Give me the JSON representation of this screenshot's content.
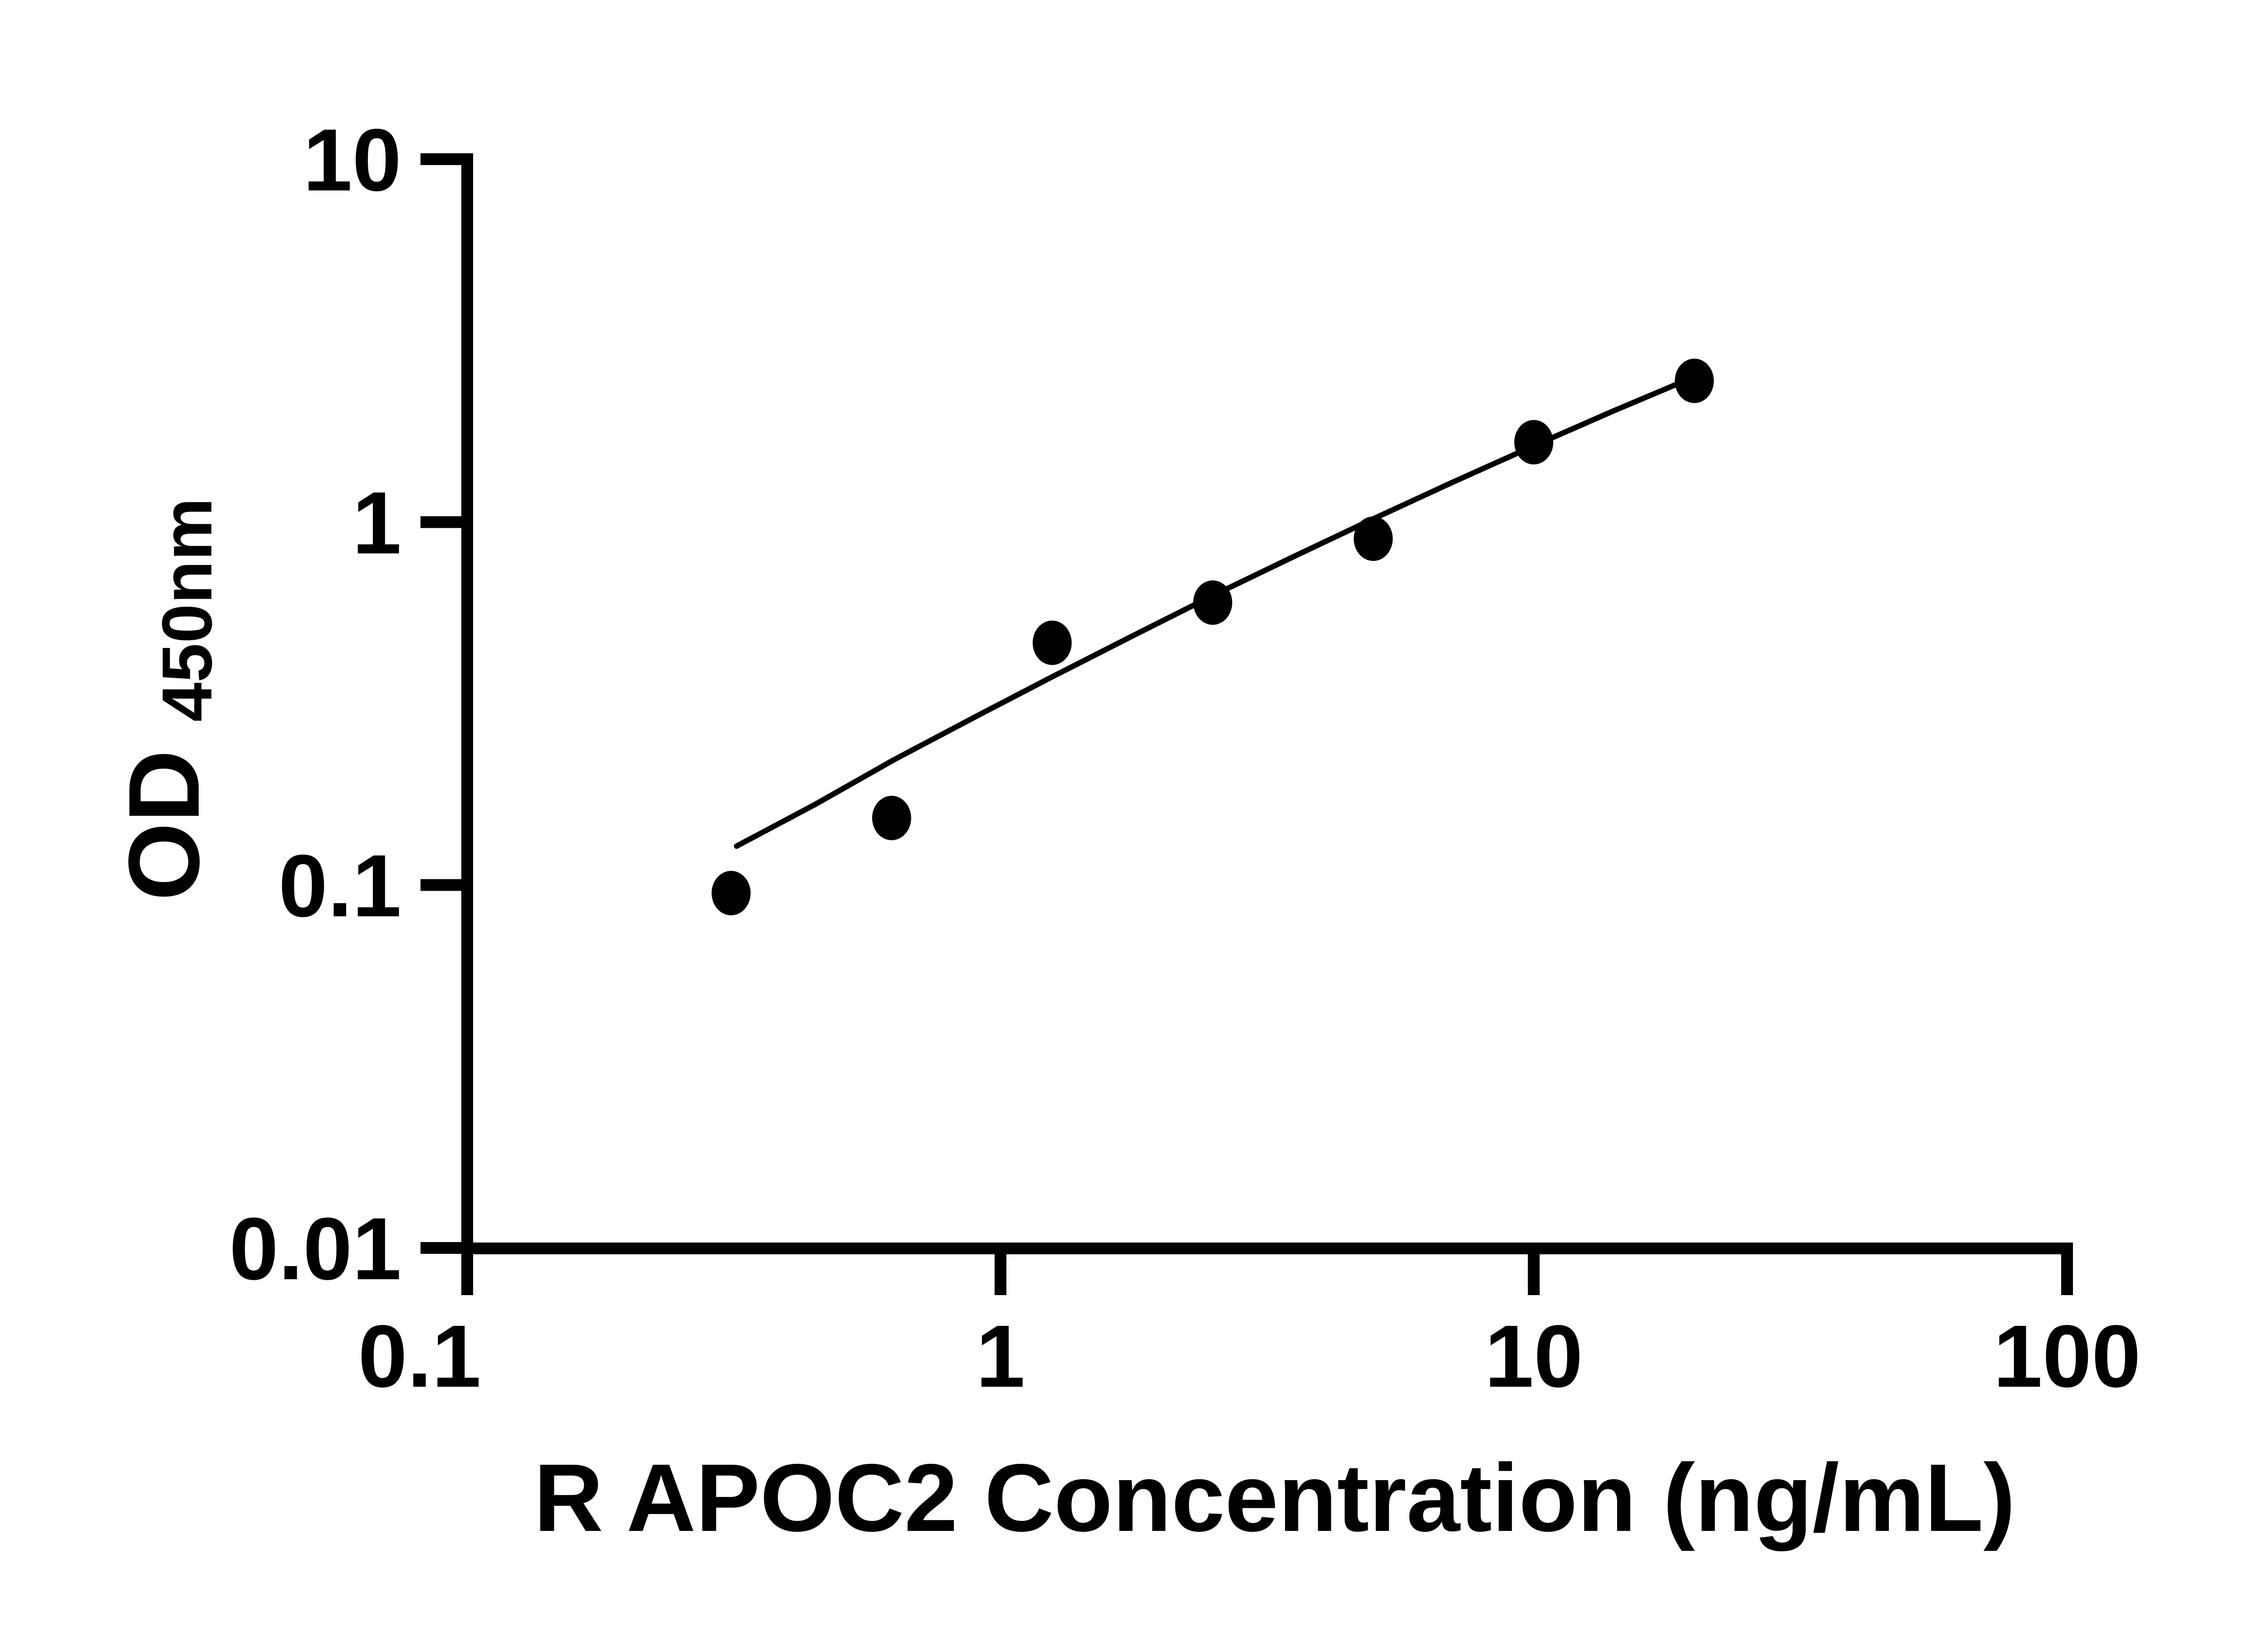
{
  "chart_data": {
    "type": "scatter",
    "title": "",
    "xlabel": "R APOC2 Concentration (ng/mL)",
    "ylabel_main": "OD",
    "ylabel_sub": "450nm",
    "x_scale": "log",
    "y_scale": "log",
    "xlim": [
      0.1,
      100
    ],
    "ylim": [
      0.01,
      10
    ],
    "grid": false,
    "legend": false,
    "axis_color": "#000000",
    "marker_color": "#000000",
    "line_color": "#000000",
    "background": "#ffffff",
    "x_ticks": [
      {
        "value": 0.1,
        "label": "0.1",
        "label_x": 885
      },
      {
        "value": 1,
        "label": "1"
      },
      {
        "value": 10,
        "label": "10"
      },
      {
        "value": 100,
        "label": "100"
      }
    ],
    "y_ticks": [
      {
        "value": 10,
        "label": "10"
      },
      {
        "value": 1,
        "label": "1"
      },
      {
        "value": 0.1,
        "label": "0.1"
      },
      {
        "value": 0.01,
        "label": "0.01"
      }
    ],
    "series": [
      {
        "name": "standard-points",
        "type": "scatter",
        "x": [
          0.3125,
          0.625,
          1.25,
          2.5,
          5,
          10,
          20
        ],
        "y": [
          0.095,
          0.153,
          0.465,
          0.6,
          0.9,
          1.66,
          2.45
        ]
      },
      {
        "name": "fit-line",
        "type": "line",
        "points": [
          [
            0.32,
            0.128
          ],
          [
            0.45,
            0.167
          ],
          [
            0.63,
            0.221
          ],
          [
            0.89,
            0.289
          ],
          [
            1.26,
            0.377
          ],
          [
            1.78,
            0.488
          ],
          [
            2.51,
            0.629
          ],
          [
            3.55,
            0.804
          ],
          [
            5.01,
            1.022
          ],
          [
            7.08,
            1.292
          ],
          [
            10,
            1.622
          ],
          [
            14.1,
            2.024
          ],
          [
            20,
            2.513
          ]
        ]
      }
    ]
  }
}
